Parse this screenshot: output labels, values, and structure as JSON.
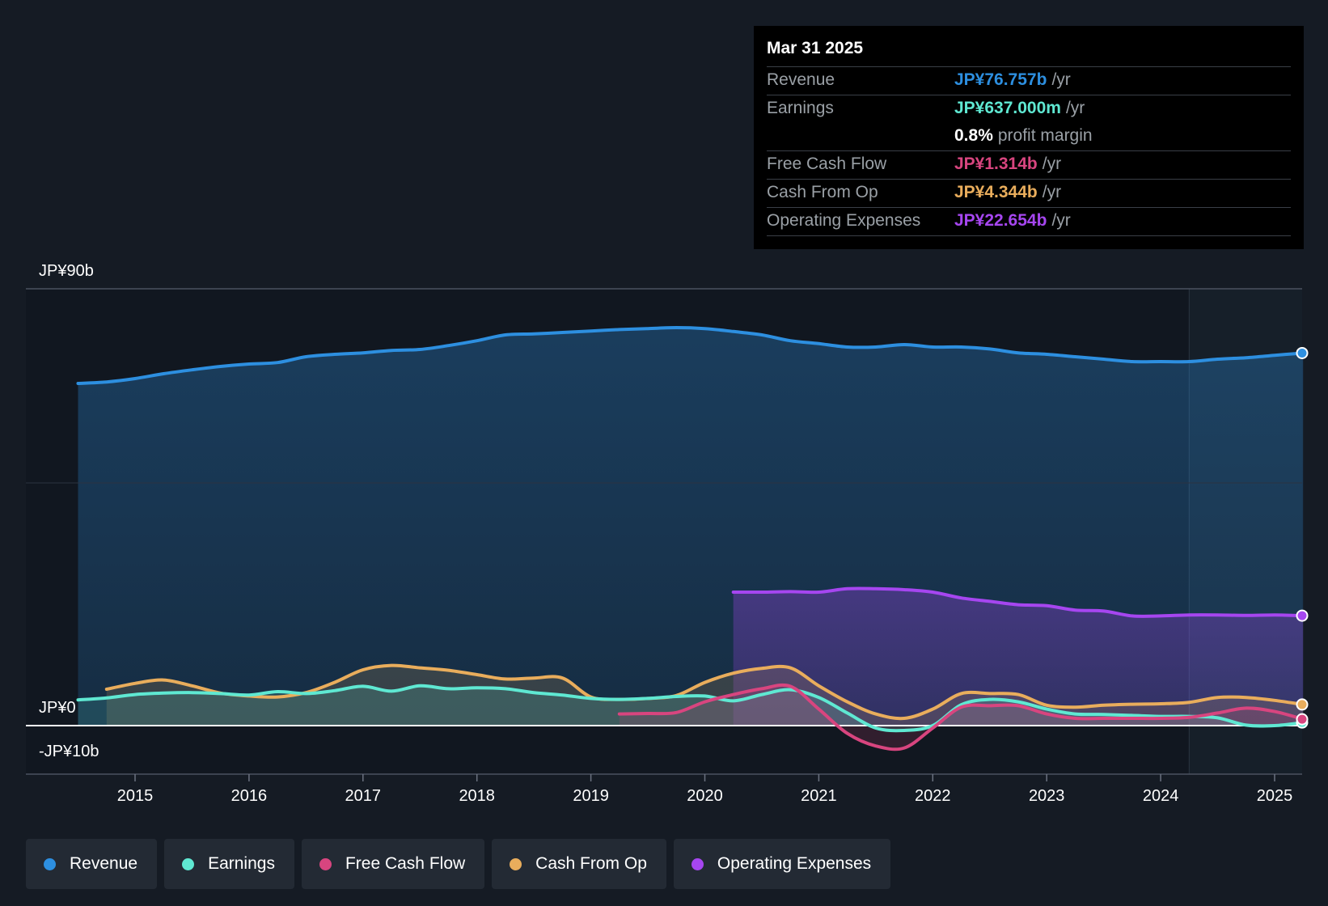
{
  "tooltip": {
    "date": "Mar 31 2025",
    "rows": [
      {
        "label": "Revenue",
        "value": "JP¥76.757b",
        "unit": "/yr",
        "color": "#2d8fe0"
      },
      {
        "label": "Earnings",
        "value": "JP¥637.000m",
        "unit": "/yr",
        "color": "#5fe8d2"
      },
      {
        "label": "",
        "value": "0.8%",
        "unit": "profit margin",
        "color": "#ffffff"
      },
      {
        "label": "Free Cash Flow",
        "value": "JP¥1.314b",
        "unit": "/yr",
        "color": "#d8457f"
      },
      {
        "label": "Cash From Op",
        "value": "JP¥4.344b",
        "unit": "/yr",
        "color": "#e9ad5c"
      },
      {
        "label": "Operating Expenses",
        "value": "JP¥22.654b",
        "unit": "/yr",
        "color": "#a646f0"
      }
    ]
  },
  "legend": [
    {
      "label": "Revenue",
      "color": "#2d8fe0"
    },
    {
      "label": "Earnings",
      "color": "#5fe8d2"
    },
    {
      "label": "Free Cash Flow",
      "color": "#d8457f"
    },
    {
      "label": "Cash From Op",
      "color": "#e9ad5c"
    },
    {
      "label": "Operating Expenses",
      "color": "#a646f0"
    }
  ],
  "chart_data": {
    "type": "area",
    "title": "",
    "xlabel": "",
    "ylabel": "",
    "ylim": [
      -10,
      90
    ],
    "xlim": [
      2014.05,
      2025.25
    ],
    "y_tick_labels": [
      {
        "value": 90,
        "label": "JP¥90b"
      },
      {
        "value": 0,
        "label": "JP¥0"
      },
      {
        "value": -10,
        "label": "-JP¥10b"
      }
    ],
    "x_ticks": [
      2015,
      2016,
      2017,
      2018,
      2019,
      2020,
      2021,
      2022,
      2023,
      2024,
      2025
    ],
    "forecast_shade_start": 2024.25,
    "series": [
      {
        "name": "Revenue",
        "color": "#2d8fe0",
        "fill": true,
        "points": [
          [
            2014.5,
            70.5
          ],
          [
            2014.75,
            70.8
          ],
          [
            2015.0,
            71.5
          ],
          [
            2015.25,
            72.5
          ],
          [
            2015.5,
            73.3
          ],
          [
            2015.75,
            74.0
          ],
          [
            2016.0,
            74.5
          ],
          [
            2016.25,
            74.8
          ],
          [
            2016.5,
            76.0
          ],
          [
            2016.75,
            76.5
          ],
          [
            2017.0,
            76.8
          ],
          [
            2017.25,
            77.3
          ],
          [
            2017.5,
            77.5
          ],
          [
            2017.75,
            78.3
          ],
          [
            2018.0,
            79.3
          ],
          [
            2018.25,
            80.5
          ],
          [
            2018.5,
            80.7
          ],
          [
            2018.75,
            81.0
          ],
          [
            2019.0,
            81.3
          ],
          [
            2019.25,
            81.6
          ],
          [
            2019.5,
            81.8
          ],
          [
            2019.75,
            82.0
          ],
          [
            2020.0,
            81.8
          ],
          [
            2020.25,
            81.2
          ],
          [
            2020.5,
            80.5
          ],
          [
            2020.75,
            79.3
          ],
          [
            2021.0,
            78.7
          ],
          [
            2021.25,
            78.0
          ],
          [
            2021.5,
            78.0
          ],
          [
            2021.75,
            78.5
          ],
          [
            2022.0,
            78.0
          ],
          [
            2022.25,
            78.0
          ],
          [
            2022.5,
            77.6
          ],
          [
            2022.75,
            76.8
          ],
          [
            2023.0,
            76.5
          ],
          [
            2023.25,
            76.0
          ],
          [
            2023.5,
            75.5
          ],
          [
            2023.75,
            75.0
          ],
          [
            2024.0,
            75.0
          ],
          [
            2024.25,
            75.0
          ],
          [
            2024.5,
            75.5
          ],
          [
            2024.75,
            75.8
          ],
          [
            2025.0,
            76.3
          ],
          [
            2025.25,
            76.757
          ]
        ]
      },
      {
        "name": "Operating Expenses",
        "color": "#a646f0",
        "fill": true,
        "points": [
          [
            2020.25,
            27.5
          ],
          [
            2020.5,
            27.5
          ],
          [
            2020.75,
            27.6
          ],
          [
            2021.0,
            27.5
          ],
          [
            2021.25,
            28.2
          ],
          [
            2021.5,
            28.2
          ],
          [
            2021.75,
            28.0
          ],
          [
            2022.0,
            27.5
          ],
          [
            2022.25,
            26.3
          ],
          [
            2022.5,
            25.6
          ],
          [
            2022.75,
            24.9
          ],
          [
            2023.0,
            24.7
          ],
          [
            2023.25,
            23.8
          ],
          [
            2023.5,
            23.6
          ],
          [
            2023.75,
            22.6
          ],
          [
            2024.0,
            22.6
          ],
          [
            2024.25,
            22.8
          ],
          [
            2024.5,
            22.8
          ],
          [
            2024.75,
            22.7
          ],
          [
            2025.0,
            22.8
          ],
          [
            2025.25,
            22.654
          ]
        ]
      },
      {
        "name": "Cash From Op",
        "color": "#e9ad5c",
        "fill": true,
        "points": [
          [
            2014.75,
            7.5
          ],
          [
            2015.0,
            8.7
          ],
          [
            2015.25,
            9.4
          ],
          [
            2015.5,
            8.2
          ],
          [
            2015.75,
            6.7
          ],
          [
            2016.0,
            6.1
          ],
          [
            2016.25,
            5.9
          ],
          [
            2016.5,
            6.8
          ],
          [
            2016.75,
            8.9
          ],
          [
            2017.0,
            11.5
          ],
          [
            2017.25,
            12.4
          ],
          [
            2017.5,
            11.9
          ],
          [
            2017.75,
            11.4
          ],
          [
            2018.0,
            10.5
          ],
          [
            2018.25,
            9.6
          ],
          [
            2018.5,
            9.8
          ],
          [
            2018.75,
            9.8
          ],
          [
            2019.0,
            5.9
          ],
          [
            2019.25,
            5.4
          ],
          [
            2019.5,
            5.6
          ],
          [
            2019.75,
            6.2
          ],
          [
            2020.0,
            8.9
          ],
          [
            2020.25,
            10.8
          ],
          [
            2020.5,
            11.8
          ],
          [
            2020.75,
            11.9
          ],
          [
            2021.0,
            8.2
          ],
          [
            2021.25,
            4.9
          ],
          [
            2021.5,
            2.4
          ],
          [
            2021.75,
            1.5
          ],
          [
            2022.0,
            3.4
          ],
          [
            2022.25,
            6.6
          ],
          [
            2022.5,
            6.6
          ],
          [
            2022.75,
            6.4
          ],
          [
            2023.0,
            4.2
          ],
          [
            2023.25,
            3.8
          ],
          [
            2023.5,
            4.2
          ],
          [
            2023.75,
            4.4
          ],
          [
            2024.0,
            4.5
          ],
          [
            2024.25,
            4.8
          ],
          [
            2024.5,
            5.8
          ],
          [
            2024.75,
            5.8
          ],
          [
            2025.0,
            5.2
          ],
          [
            2025.25,
            4.344
          ]
        ]
      },
      {
        "name": "Earnings",
        "color": "#5fe8d2",
        "fill": true,
        "points": [
          [
            2014.5,
            5.3
          ],
          [
            2014.75,
            5.7
          ],
          [
            2015.0,
            6.4
          ],
          [
            2015.25,
            6.7
          ],
          [
            2015.5,
            6.8
          ],
          [
            2015.75,
            6.6
          ],
          [
            2016.0,
            6.3
          ],
          [
            2016.25,
            7.0
          ],
          [
            2016.5,
            6.6
          ],
          [
            2016.75,
            7.2
          ],
          [
            2017.0,
            8.1
          ],
          [
            2017.25,
            7.1
          ],
          [
            2017.5,
            8.2
          ],
          [
            2017.75,
            7.6
          ],
          [
            2018.0,
            7.8
          ],
          [
            2018.25,
            7.6
          ],
          [
            2018.5,
            6.8
          ],
          [
            2018.75,
            6.3
          ],
          [
            2019.0,
            5.6
          ],
          [
            2019.25,
            5.4
          ],
          [
            2019.5,
            5.6
          ],
          [
            2019.75,
            6.0
          ],
          [
            2020.0,
            6.1
          ],
          [
            2020.25,
            5.1
          ],
          [
            2020.5,
            6.4
          ],
          [
            2020.75,
            7.4
          ],
          [
            2021.0,
            5.8
          ],
          [
            2021.25,
            2.6
          ],
          [
            2021.5,
            -0.5
          ],
          [
            2021.75,
            -1.0
          ],
          [
            2022.0,
            0.0
          ],
          [
            2022.25,
            4.3
          ],
          [
            2022.5,
            5.4
          ],
          [
            2022.75,
            4.9
          ],
          [
            2023.0,
            3.4
          ],
          [
            2023.25,
            2.4
          ],
          [
            2023.5,
            2.3
          ],
          [
            2023.75,
            2.1
          ],
          [
            2024.0,
            1.9
          ],
          [
            2024.25,
            1.9
          ],
          [
            2024.5,
            1.6
          ],
          [
            2024.75,
            0.1
          ],
          [
            2025.0,
            0.0
          ],
          [
            2025.25,
            0.637
          ]
        ]
      },
      {
        "name": "Free Cash Flow",
        "color": "#d8457f",
        "fill": true,
        "points": [
          [
            2019.25,
            2.4
          ],
          [
            2019.5,
            2.5
          ],
          [
            2019.75,
            2.7
          ],
          [
            2020.0,
            4.9
          ],
          [
            2020.25,
            6.4
          ],
          [
            2020.5,
            7.6
          ],
          [
            2020.75,
            8.1
          ],
          [
            2021.0,
            3.4
          ],
          [
            2021.25,
            -1.6
          ],
          [
            2021.5,
            -4.2
          ],
          [
            2021.75,
            -4.6
          ],
          [
            2022.0,
            -0.5
          ],
          [
            2022.25,
            3.8
          ],
          [
            2022.5,
            4.1
          ],
          [
            2022.75,
            4.1
          ],
          [
            2023.0,
            2.4
          ],
          [
            2023.25,
            1.5
          ],
          [
            2023.5,
            1.5
          ],
          [
            2023.75,
            1.5
          ],
          [
            2024.0,
            1.5
          ],
          [
            2024.25,
            1.7
          ],
          [
            2024.5,
            2.6
          ],
          [
            2024.75,
            3.6
          ],
          [
            2025.0,
            2.9
          ],
          [
            2025.25,
            1.314
          ]
        ]
      }
    ]
  }
}
